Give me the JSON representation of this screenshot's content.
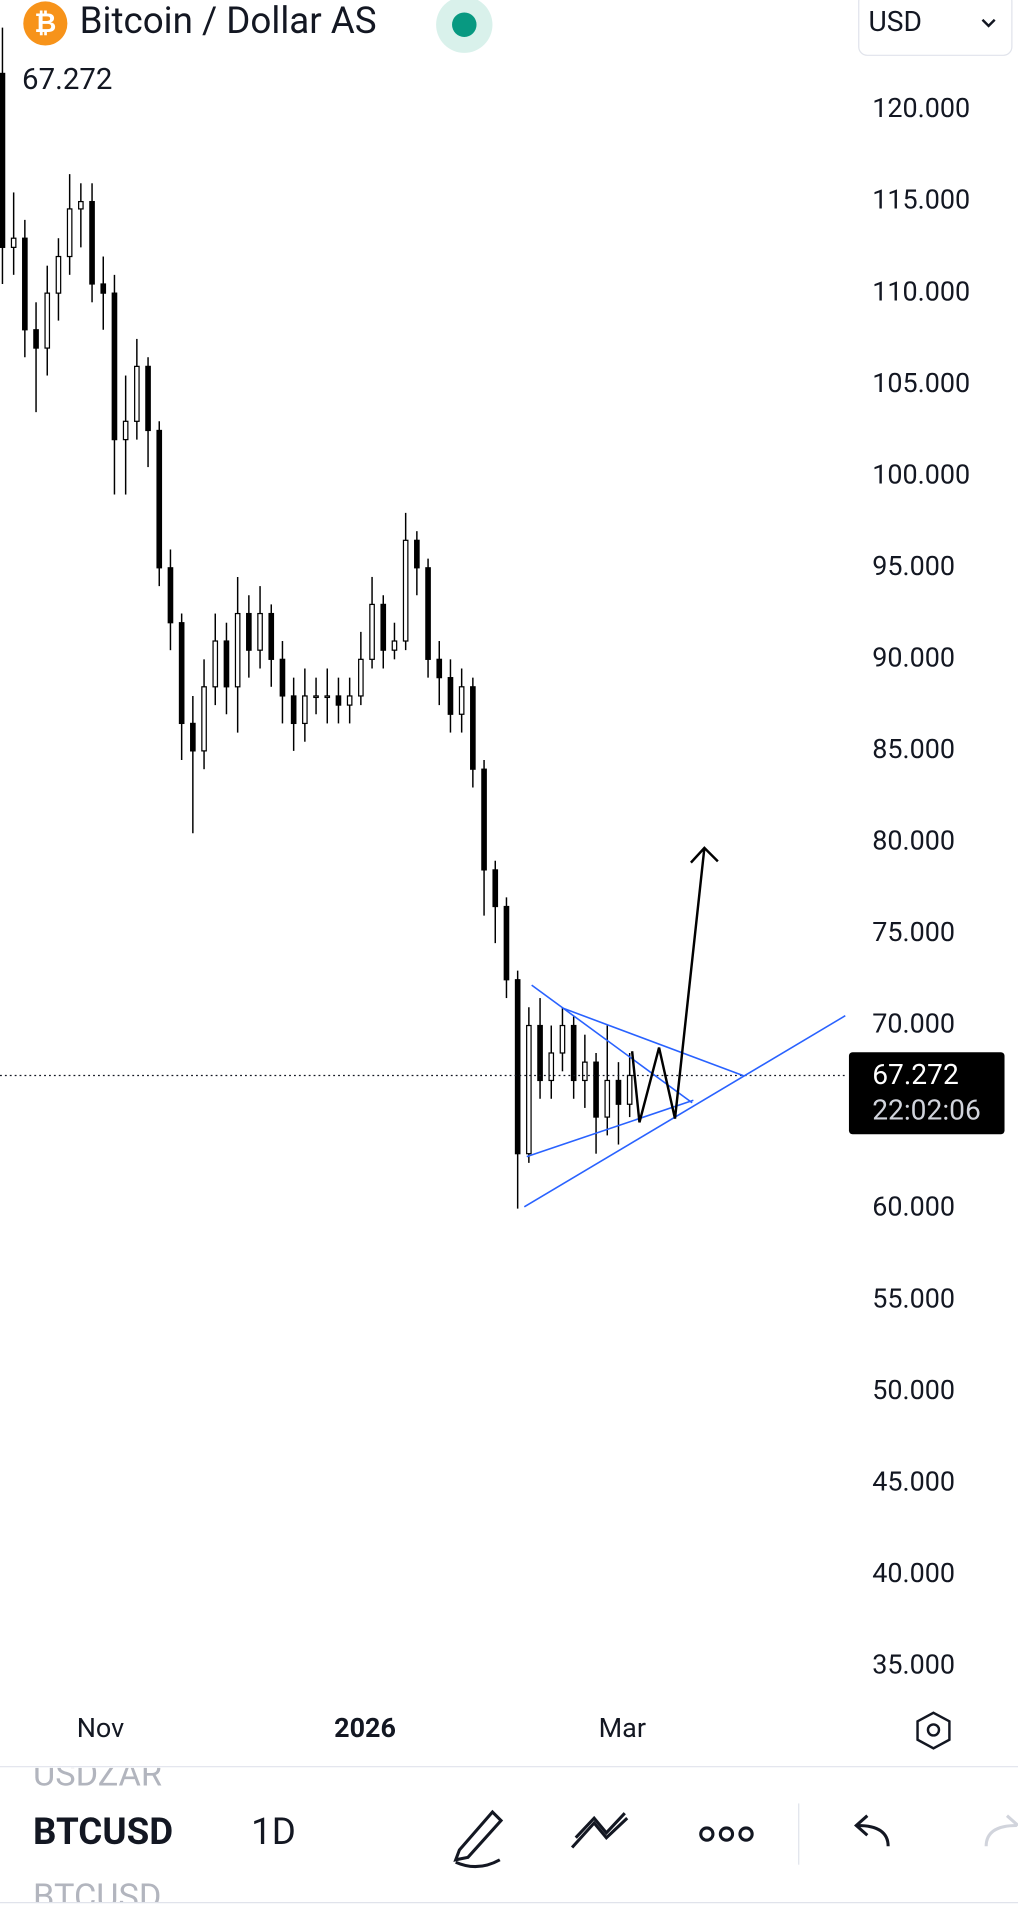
{
  "header": {
    "symbol_name": "Bitcoin / Dollar AS",
    "last_price": "67.272",
    "currency": "USD"
  },
  "chart_data": {
    "type": "candlestick",
    "color": "#000000",
    "open": [
      122000,
      112500,
      113000,
      108000,
      107000,
      110000,
      112000,
      114600,
      115000,
      110500,
      110000,
      102000,
      103000,
      106000,
      102500,
      95000,
      92000,
      86500,
      85000,
      88500,
      91000,
      88500,
      92500,
      90500,
      92500,
      90000,
      88000,
      86500,
      88000,
      88000,
      88000,
      87500,
      88000,
      90000,
      93000,
      90500,
      91000,
      96500,
      95000,
      90000,
      89000,
      87000,
      88500,
      84000,
      78500,
      76500,
      72500,
      63000,
      70000,
      67000,
      68500,
      70000,
      67000,
      68000,
      65000,
      67000,
      65700
    ],
    "high": [
      124500,
      115500,
      114000,
      109500,
      111500,
      113000,
      116500,
      116000,
      116000,
      112000,
      111000,
      105500,
      107500,
      106500,
      103000,
      96000,
      92500,
      88000,
      90000,
      92500,
      92000,
      94500,
      93500,
      94000,
      93000,
      91000,
      89000,
      89500,
      89000,
      89500,
      89000,
      89000,
      91500,
      94500,
      93500,
      92000,
      98000,
      97000,
      95500,
      91000,
      90000,
      89500,
      89000,
      84500,
      79000,
      77000,
      73000,
      71000,
      71500,
      70000,
      71000,
      70500,
      69500,
      68500,
      70000,
      68000,
      68500
    ],
    "low": [
      110500,
      111000,
      106500,
      103500,
      105500,
      108500,
      111000,
      112500,
      109500,
      108000,
      99000,
      99000,
      102000,
      100500,
      94000,
      90500,
      84500,
      80500,
      84000,
      87500,
      87000,
      86000,
      89000,
      89500,
      88500,
      86500,
      85000,
      85500,
      87000,
      86500,
      86500,
      86500,
      87500,
      89500,
      89500,
      90000,
      90500,
      93500,
      89000,
      87500,
      86000,
      86000,
      83000,
      76000,
      74500,
      71500,
      60000,
      62500,
      66000,
      66000,
      67500,
      66000,
      65500,
      63000,
      64000,
      63500,
      65000
    ],
    "close": [
      112500,
      113000,
      108000,
      107000,
      110000,
      112000,
      114600,
      115000,
      110500,
      110000,
      102000,
      103000,
      106000,
      102500,
      95000,
      92000,
      86500,
      85000,
      88500,
      91000,
      88500,
      92500,
      90500,
      92500,
      90000,
      88000,
      86500,
      88000,
      88000,
      88000,
      87500,
      88000,
      90000,
      93000,
      90500,
      91000,
      96500,
      95000,
      90000,
      89000,
      87000,
      88500,
      84000,
      78500,
      76500,
      72500,
      63000,
      70000,
      67000,
      68500,
      70000,
      67000,
      68000,
      65000,
      67000,
      65700,
      67272
    ],
    "ylim": [
      33000,
      126000
    ],
    "yticks": [
      {
        "value": 120000,
        "label": "120.000"
      },
      {
        "value": 115000,
        "label": "115.000"
      },
      {
        "value": 110000,
        "label": "110.000"
      },
      {
        "value": 105000,
        "label": "105.000"
      },
      {
        "value": 100000,
        "label": "100.000"
      },
      {
        "value": 95000,
        "label": "95.000"
      },
      {
        "value": 90000,
        "label": "90.000"
      },
      {
        "value": 85000,
        "label": "85.000"
      },
      {
        "value": 80000,
        "label": "80.000"
      },
      {
        "value": 75000,
        "label": "75.000"
      },
      {
        "value": 70000,
        "label": "70.000"
      },
      {
        "value": 60000,
        "label": "60.000"
      },
      {
        "value": 55000,
        "label": "55.000"
      },
      {
        "value": 50000,
        "label": "50.000"
      },
      {
        "value": 45000,
        "label": "45.000"
      },
      {
        "value": 40000,
        "label": "40.000"
      },
      {
        "value": 35000,
        "label": "35.000"
      }
    ],
    "x_labels": [
      "Nov",
      "2026",
      "Mar"
    ],
    "price_marker": {
      "value": 67272,
      "label": "67.272",
      "countdown": "22:02:06"
    }
  },
  "toolbar": {
    "prev_symbol": "USDZAR",
    "symbol": "BTCUSD",
    "interval": "1D",
    "next_symbol": "BTCUSD"
  }
}
